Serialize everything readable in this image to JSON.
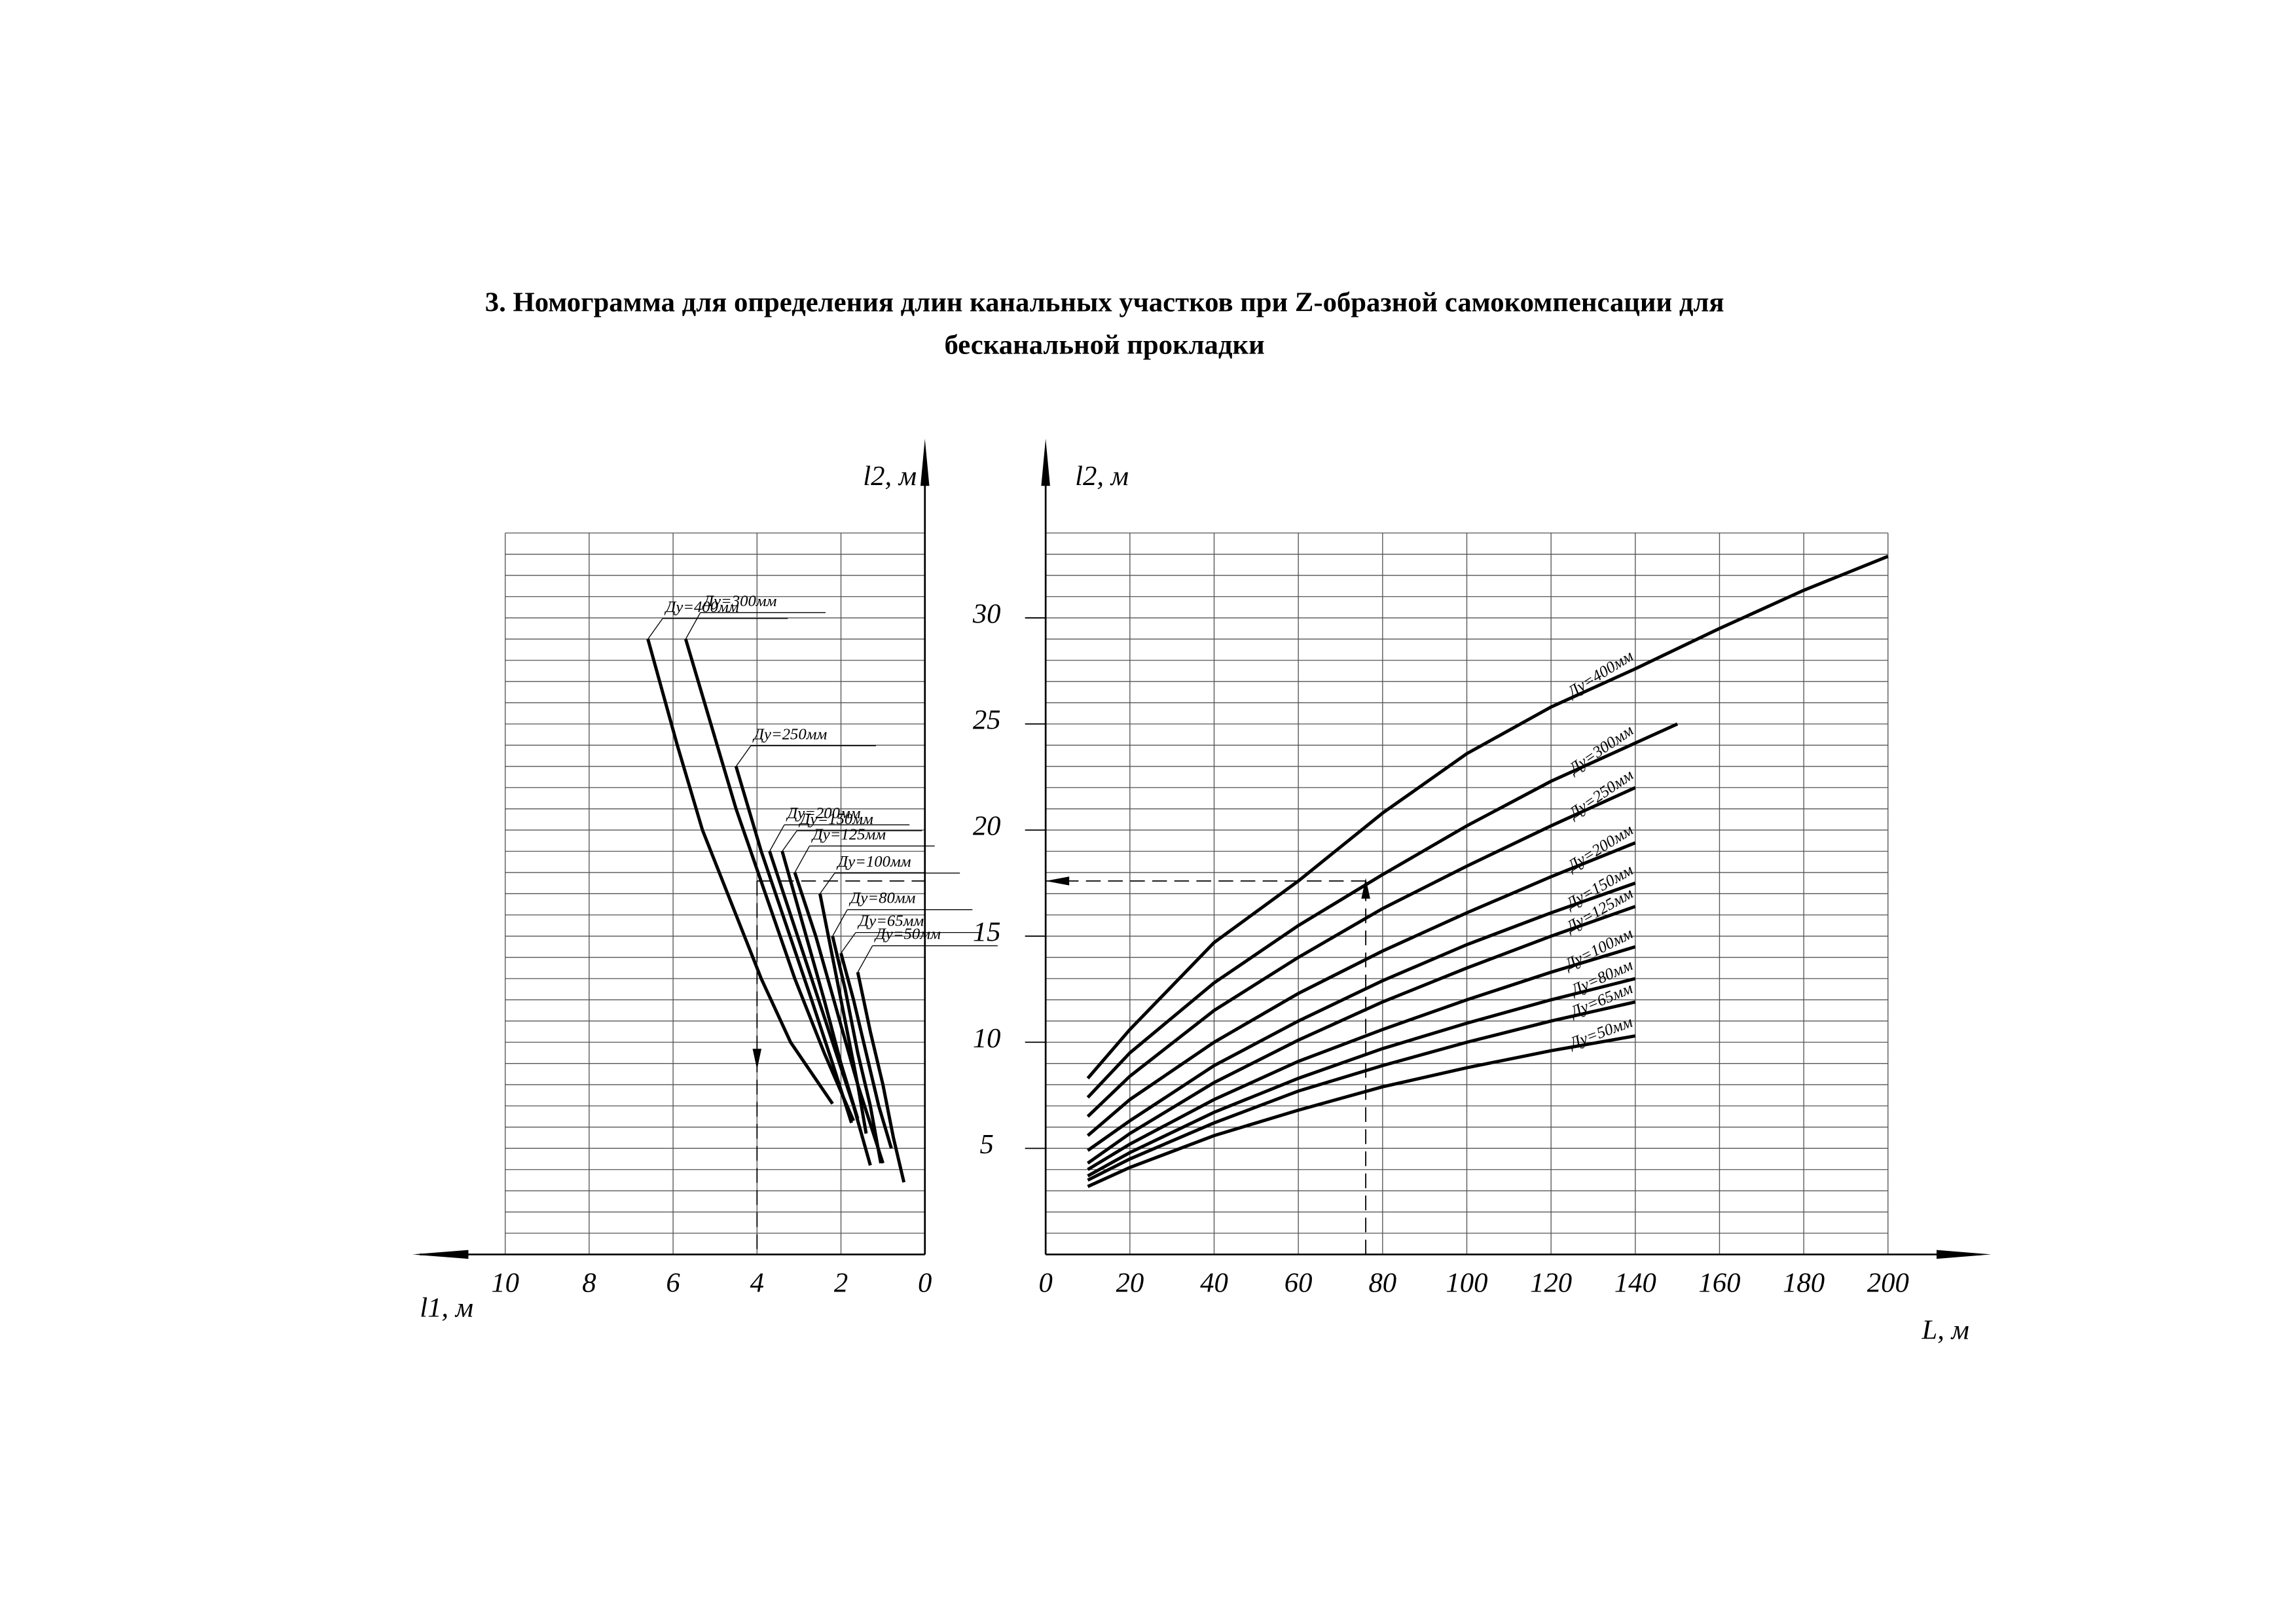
{
  "title_lines": [
    "3. Номограмма для определения длин канальных участков при Z-образной самокомпенсации для",
    "бесканальной прокладки"
  ],
  "chart_data": [
    {
      "type": "line",
      "xlabel": "l1, м",
      "ylabel": "l2, м",
      "x_reversed": true,
      "color": "#000",
      "xlim": [
        0,
        10
      ],
      "ylim": [
        0,
        34
      ],
      "xticks": [
        10,
        8,
        6,
        4,
        2,
        0
      ],
      "ygrid": [
        0,
        1,
        2,
        3,
        4,
        5,
        6,
        7,
        8,
        9,
        10,
        11,
        12,
        13,
        14,
        15,
        16,
        17,
        18,
        19,
        20,
        21,
        22,
        23,
        24,
        25,
        26,
        27,
        28,
        29,
        30,
        31,
        32,
        33,
        34
      ],
      "example": {
        "x": 4.0,
        "y": 17.6
      },
      "series": [
        {
          "name": "Ду=400мм",
          "x": [
            6.6,
            5.9,
            5.3,
            4.6,
            3.9,
            3.2,
            2.2
          ],
          "values": [
            29,
            24,
            20,
            16.5,
            13,
            10,
            7.1
          ]
        },
        {
          "name": "Ду=300мм",
          "x": [
            5.7,
            5.1,
            4.5,
            3.8,
            3.1,
            2.4,
            1.7
          ],
          "values": [
            29,
            25,
            21,
            17,
            13,
            9.5,
            6.3
          ]
        },
        {
          "name": "Ду=250мм",
          "x": [
            4.5,
            3.9,
            3.3,
            2.7,
            2.2,
            1.75
          ],
          "values": [
            23,
            19,
            15.5,
            12,
            9,
            6.2
          ]
        },
        {
          "name": "Ду=200мм",
          "x": [
            3.7,
            3.2,
            2.7,
            2.2,
            1.7,
            1.3
          ],
          "values": [
            19,
            16,
            13,
            10,
            7,
            4.2
          ]
        },
        {
          "name": "Ду=150мм",
          "x": [
            3.4,
            2.9,
            2.4,
            2.0,
            1.6
          ],
          "values": [
            19,
            15.5,
            12,
            9,
            6.4
          ]
        },
        {
          "name": "Ду=125мм",
          "x": [
            3.1,
            2.6,
            2.1,
            1.6,
            1.0
          ],
          "values": [
            18,
            15,
            11.5,
            8,
            4.3
          ]
        },
        {
          "name": "Ду=100мм",
          "x": [
            2.5,
            2.2,
            1.9,
            1.6,
            1.4
          ],
          "values": [
            17,
            14,
            11,
            8,
            5.7
          ]
        },
        {
          "name": "Ду=80мм",
          "x": [
            2.2,
            1.9,
            1.6,
            1.3,
            1.05
          ],
          "values": [
            15,
            12.5,
            9.5,
            7,
            4.3
          ]
        },
        {
          "name": "Ду=65мм",
          "x": [
            2.0,
            1.7,
            1.4,
            1.1,
            0.8
          ],
          "values": [
            14.2,
            12,
            9.5,
            7,
            5
          ]
        },
        {
          "name": "Ду=50мм",
          "x": [
            1.6,
            1.3,
            1.0,
            0.75,
            0.5
          ],
          "values": [
            13.3,
            10.5,
            8,
            5.5,
            3.4
          ]
        }
      ]
    },
    {
      "type": "line",
      "xlabel": "L, м",
      "ylabel": "l2, м",
      "color": "#000",
      "xlim": [
        0,
        200
      ],
      "ylim": [
        0,
        34
      ],
      "xticks": [
        0,
        20,
        40,
        60,
        80,
        100,
        120,
        140,
        160,
        180,
        200
      ],
      "yticks": [
        5,
        10,
        15,
        20,
        25,
        30
      ],
      "ygrid": [
        0,
        1,
        2,
        3,
        4,
        5,
        6,
        7,
        8,
        9,
        10,
        11,
        12,
        13,
        14,
        15,
        16,
        17,
        18,
        19,
        20,
        21,
        22,
        23,
        24,
        25,
        26,
        27,
        28,
        29,
        30,
        31,
        32,
        33,
        34
      ],
      "example": {
        "x": 76,
        "y": 17.6
      },
      "series": [
        {
          "name": "Ду=400мм",
          "x": [
            10,
            20,
            40,
            60,
            80,
            100,
            120,
            140,
            160,
            180,
            200
          ],
          "values": [
            8.3,
            10.6,
            14.7,
            17.6,
            20.8,
            23.6,
            25.8,
            27.6,
            29.5,
            31.3,
            32.9
          ]
        },
        {
          "name": "Ду=300мм",
          "x": [
            10,
            20,
            40,
            60,
            80,
            100,
            120,
            140,
            150
          ],
          "values": [
            7.4,
            9.5,
            12.8,
            15.5,
            17.9,
            20.2,
            22.3,
            24.1,
            25.0
          ]
        },
        {
          "name": "Ду=250мм",
          "x": [
            10,
            20,
            40,
            60,
            80,
            100,
            120,
            140
          ],
          "values": [
            6.5,
            8.4,
            11.5,
            14.0,
            16.3,
            18.3,
            20.2,
            22.0
          ]
        },
        {
          "name": "Ду=200мм",
          "x": [
            10,
            20,
            40,
            60,
            80,
            100,
            120,
            140
          ],
          "values": [
            5.6,
            7.3,
            10.0,
            12.3,
            14.3,
            16.1,
            17.8,
            19.4
          ]
        },
        {
          "name": "Ду=150мм",
          "x": [
            10,
            20,
            40,
            60,
            80,
            100,
            120,
            140
          ],
          "values": [
            4.9,
            6.3,
            8.9,
            11.0,
            12.9,
            14.6,
            16.1,
            17.5
          ]
        },
        {
          "name": "Ду=125мм",
          "x": [
            10,
            20,
            40,
            60,
            80,
            100,
            120,
            140
          ],
          "values": [
            4.3,
            5.7,
            8.1,
            10.1,
            11.9,
            13.5,
            15.0,
            16.4
          ]
        },
        {
          "name": "Ду=100мм",
          "x": [
            10,
            20,
            40,
            60,
            80,
            100,
            120,
            140
          ],
          "values": [
            4.0,
            5.2,
            7.3,
            9.1,
            10.6,
            12.0,
            13.3,
            14.5
          ]
        },
        {
          "name": "Ду=80мм",
          "x": [
            10,
            20,
            40,
            60,
            80,
            100,
            120,
            140
          ],
          "values": [
            3.7,
            4.8,
            6.7,
            8.3,
            9.7,
            10.9,
            12.0,
            13.0
          ]
        },
        {
          "name": "Ду=65мм",
          "x": [
            10,
            20,
            40,
            60,
            80,
            100,
            120,
            140
          ],
          "values": [
            3.5,
            4.5,
            6.2,
            7.7,
            8.9,
            10.0,
            11.0,
            11.9
          ]
        },
        {
          "name": "Ду=50мм",
          "x": [
            10,
            20,
            40,
            60,
            80,
            100,
            120,
            140
          ],
          "values": [
            3.2,
            4.1,
            5.6,
            6.8,
            7.9,
            8.8,
            9.6,
            10.3
          ]
        }
      ]
    }
  ]
}
